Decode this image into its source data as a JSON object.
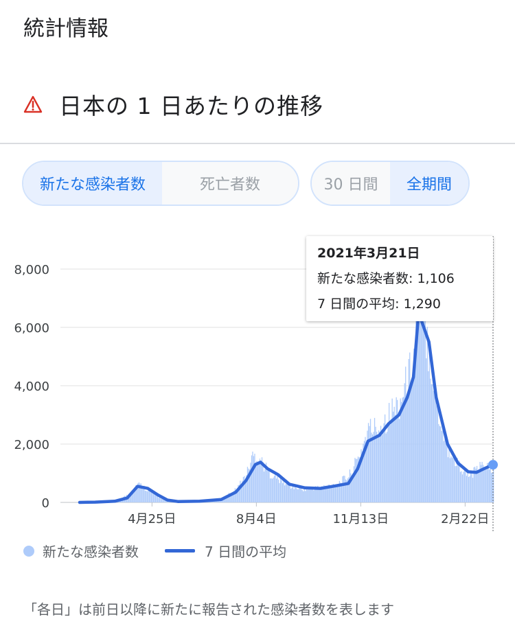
{
  "header": {
    "title": "統計情報"
  },
  "section": {
    "title": "日本の 1 日あたりの推移",
    "warning_icon": "warning-triangle-icon",
    "warning_color": "#d93025"
  },
  "metric_toggle": {
    "options": [
      "新たな感染者数",
      "死亡者数"
    ],
    "selected": "新たな感染者数"
  },
  "period_toggle": {
    "options": [
      "30 日間",
      "全期間"
    ],
    "selected": "全期間"
  },
  "tooltip": {
    "date": "2021年3月21日",
    "new_cases_line": "新たな感染者数: 1,106",
    "avg_line": "7 日間の平均: 1,290"
  },
  "legend": {
    "cases": "新たな感染者数",
    "avg": "7 日間の平均"
  },
  "footnote": "「各日」は前日以降に新たに報告された感染者数を表します",
  "colors": {
    "bar": "#aecbfa",
    "line": "#3367d6",
    "accent": "#1a73e8"
  },
  "chart_data": {
    "type": "bar",
    "y_ticks": [
      "8,000",
      "6,000",
      "4,000",
      "2,000",
      "0"
    ],
    "x_ticks": [
      "4月25日",
      "8月4日",
      "11月13日",
      "2月22日"
    ],
    "ylim": [
      0,
      8000
    ],
    "grid": true,
    "legend_position": "bottom",
    "series": [
      {
        "name": "新たな感染者数",
        "type": "bar"
      },
      {
        "name": "7 日間の平均",
        "type": "line"
      }
    ],
    "avg_series": [
      [
        "2020-02-15",
        0
      ],
      [
        "2020-03-01",
        10
      ],
      [
        "2020-03-20",
        40
      ],
      [
        "2020-04-01",
        150
      ],
      [
        "2020-04-11",
        550
      ],
      [
        "2020-04-21",
        480
      ],
      [
        "2020-05-01",
        250
      ],
      [
        "2020-05-10",
        80
      ],
      [
        "2020-05-20",
        30
      ],
      [
        "2020-06-10",
        40
      ],
      [
        "2020-07-01",
        100
      ],
      [
        "2020-07-15",
        350
      ],
      [
        "2020-07-25",
        750
      ],
      [
        "2020-08-03",
        1300
      ],
      [
        "2020-08-08",
        1380
      ],
      [
        "2020-08-15",
        1150
      ],
      [
        "2020-08-25",
        950
      ],
      [
        "2020-09-05",
        620
      ],
      [
        "2020-09-20",
        500
      ],
      [
        "2020-10-05",
        480
      ],
      [
        "2020-10-20",
        570
      ],
      [
        "2020-11-01",
        650
      ],
      [
        "2020-11-10",
        1150
      ],
      [
        "2020-11-20",
        2100
      ],
      [
        "2020-12-01",
        2300
      ],
      [
        "2020-12-10",
        2700
      ],
      [
        "2020-12-20",
        3000
      ],
      [
        "2020-12-28",
        3600
      ],
      [
        "2021-01-03",
        4300
      ],
      [
        "2021-01-08",
        6500
      ],
      [
        "2021-01-12",
        6100
      ],
      [
        "2021-01-18",
        5500
      ],
      [
        "2021-01-25",
        3600
      ],
      [
        "2021-02-05",
        2000
      ],
      [
        "2021-02-15",
        1350
      ],
      [
        "2021-02-25",
        1050
      ],
      [
        "2021-03-05",
        1030
      ],
      [
        "2021-03-12",
        1150
      ],
      [
        "2021-03-21",
        1290
      ]
    ],
    "daily_series": [
      [
        "2020-02-15",
        0
      ],
      [
        "2020-03-01",
        20
      ],
      [
        "2020-03-20",
        60
      ],
      [
        "2020-04-01",
        250
      ],
      [
        "2020-04-11",
        650
      ],
      [
        "2020-04-21",
        420
      ],
      [
        "2020-05-01",
        180
      ],
      [
        "2020-05-10",
        60
      ],
      [
        "2020-05-20",
        25
      ],
      [
        "2020-06-10",
        50
      ],
      [
        "2020-07-01",
        120
      ],
      [
        "2020-07-15",
        450
      ],
      [
        "2020-07-25",
        950
      ],
      [
        "2020-07-31",
        1600
      ],
      [
        "2020-08-07",
        1500
      ],
      [
        "2020-08-15",
        1050
      ],
      [
        "2020-08-25",
        800
      ],
      [
        "2020-09-05",
        550
      ],
      [
        "2020-09-20",
        450
      ],
      [
        "2020-10-05",
        520
      ],
      [
        "2020-10-20",
        620
      ],
      [
        "2020-11-01",
        900
      ],
      [
        "2020-11-10",
        1500
      ],
      [
        "2020-11-20",
        2500
      ],
      [
        "2020-12-01",
        2600
      ],
      [
        "2020-12-10",
        3000
      ],
      [
        "2020-12-20",
        3400
      ],
      [
        "2020-12-28",
        4200
      ],
      [
        "2021-01-03",
        5000
      ],
      [
        "2021-01-08",
        7800
      ],
      [
        "2021-01-12",
        6600
      ],
      [
        "2021-01-18",
        5200
      ],
      [
        "2021-01-25",
        3300
      ],
      [
        "2021-02-05",
        1800
      ],
      [
        "2021-02-15",
        1300
      ],
      [
        "2021-02-25",
        900
      ],
      [
        "2021-03-05",
        1100
      ],
      [
        "2021-03-12",
        1300
      ],
      [
        "2021-03-21",
        1106
      ]
    ],
    "x_start": "2020-02-15",
    "x_end": "2021-03-21",
    "x_tick_dates": [
      "2020-04-25",
      "2020-08-04",
      "2020-11-13",
      "2021-02-22"
    ],
    "highlight_date": "2021-03-21"
  }
}
